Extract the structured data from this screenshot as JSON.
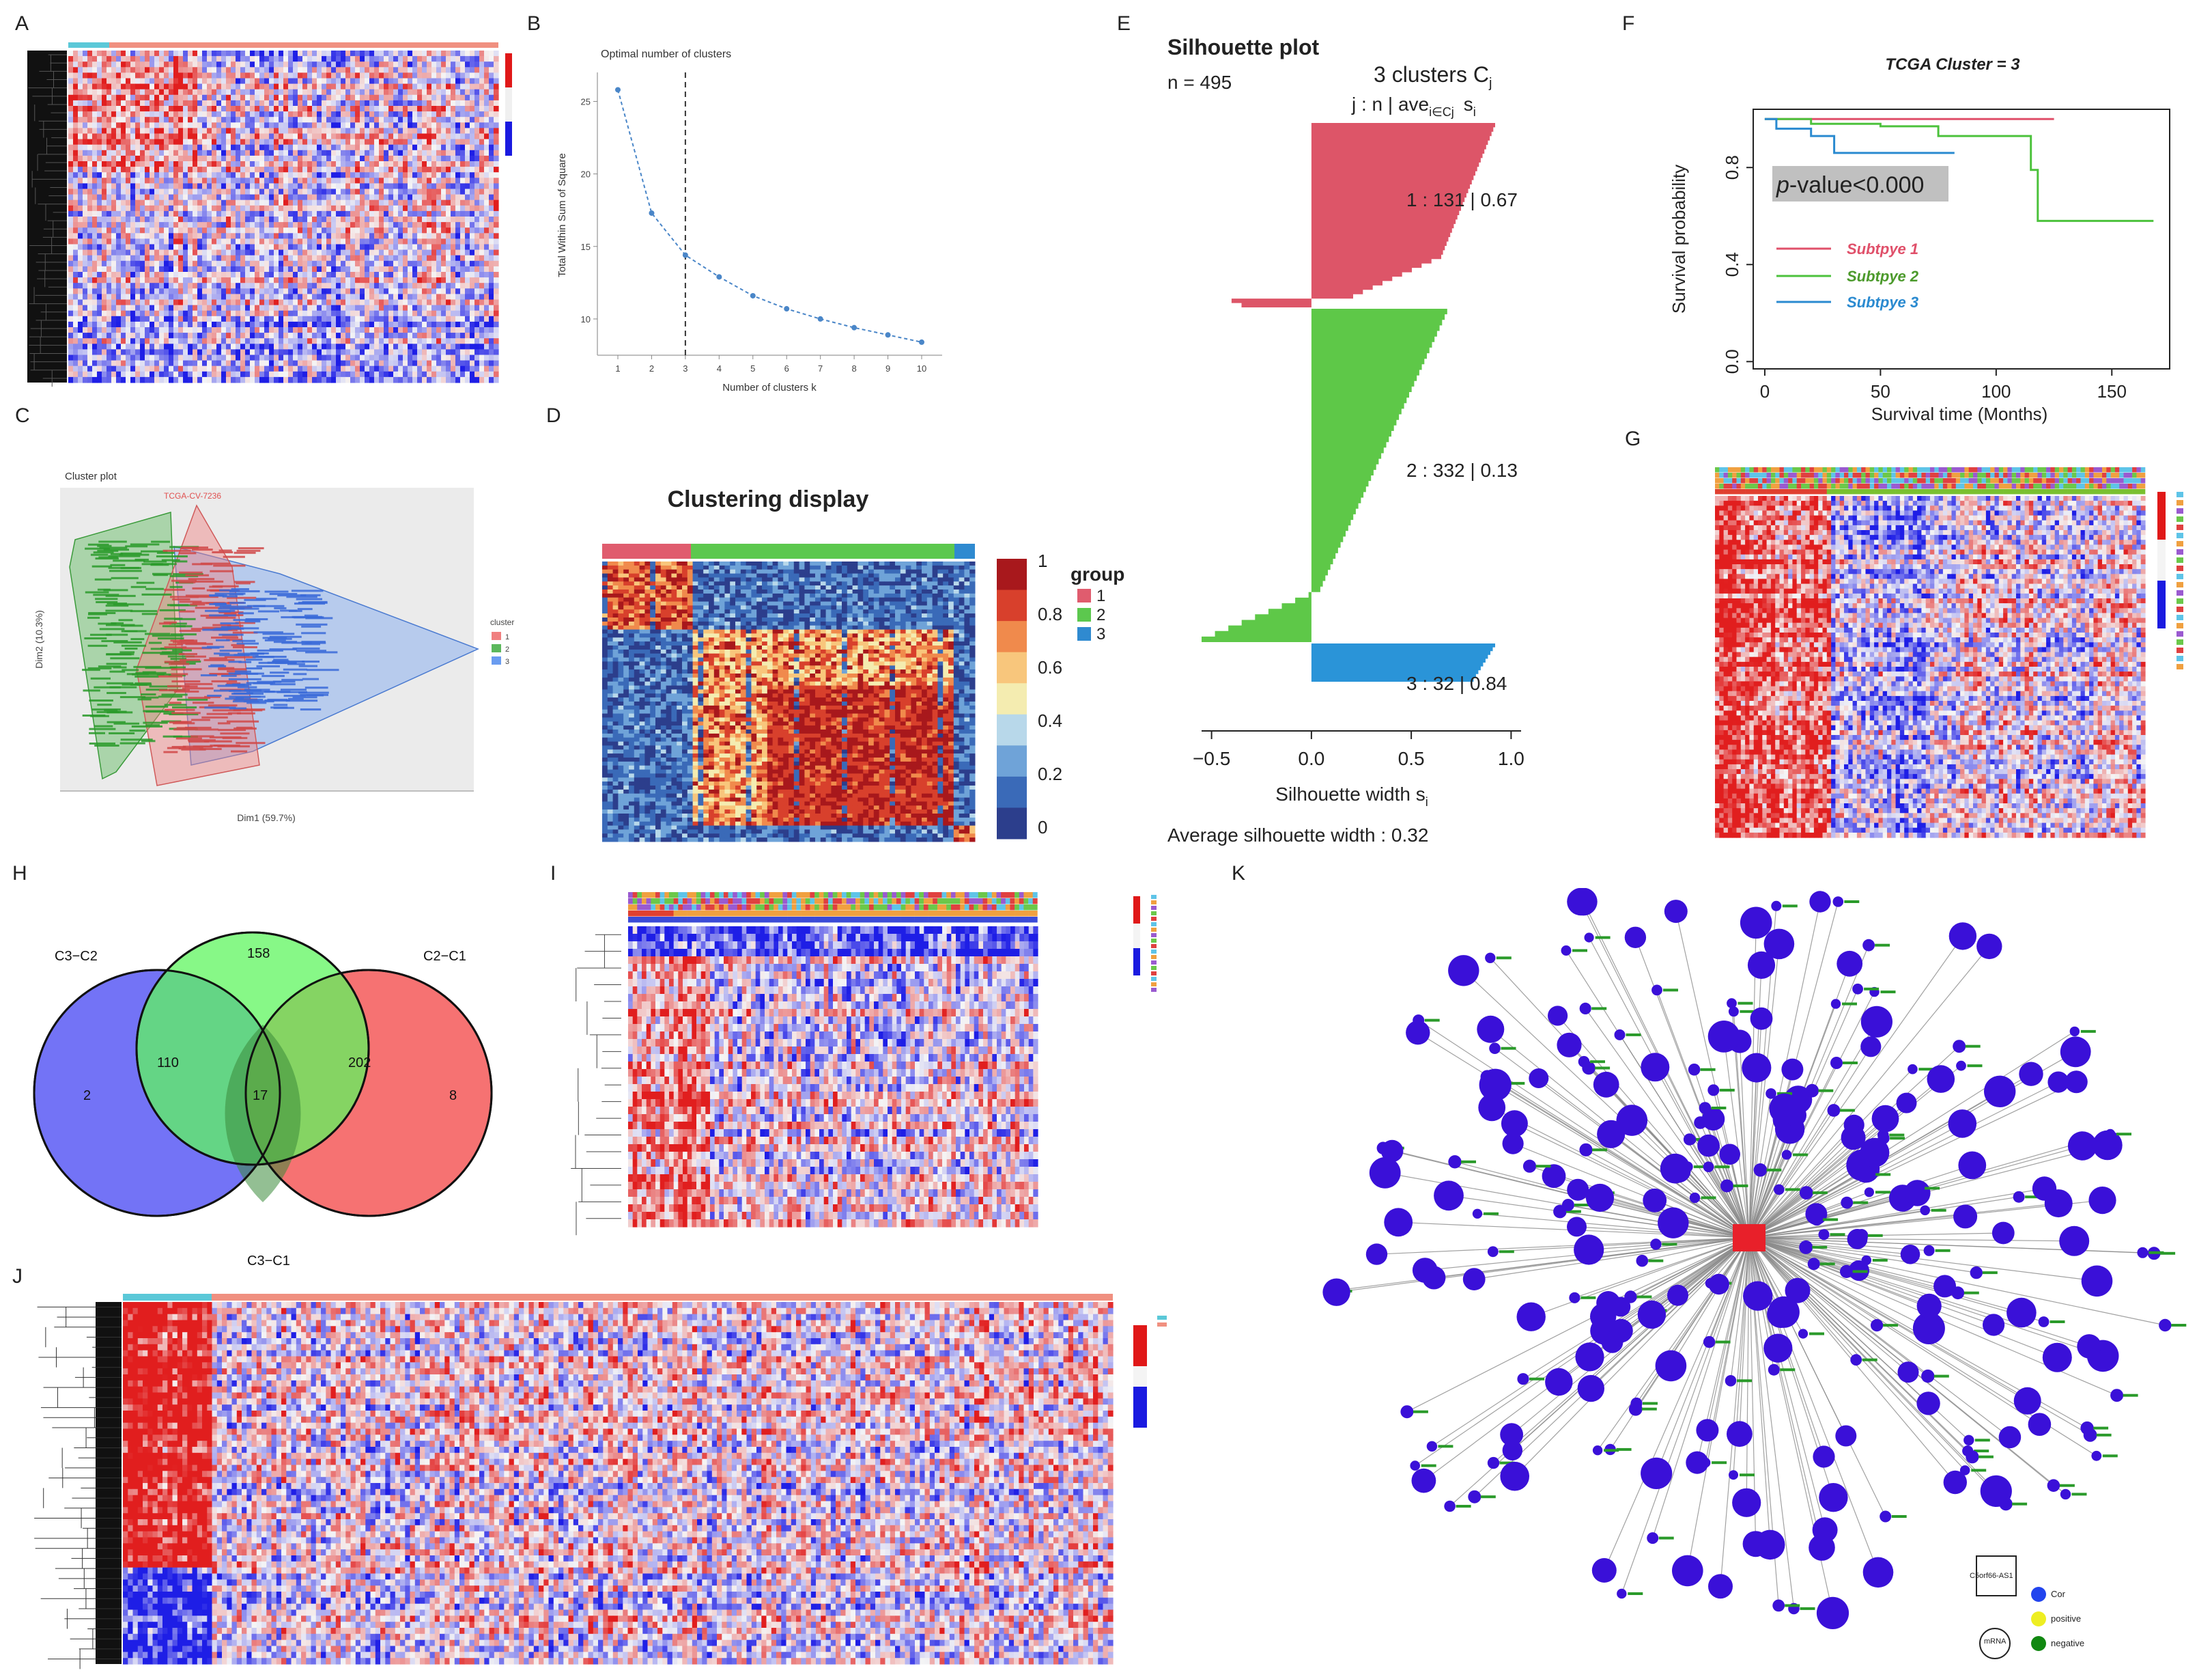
{
  "panel_letters": [
    "A",
    "B",
    "C",
    "D",
    "E",
    "F",
    "G",
    "H",
    "I",
    "J",
    "K"
  ],
  "chart_data": [
    {
      "id": "B",
      "type": "line",
      "title": "Optimal number of clusters",
      "xlabel": "Number of clusters k",
      "ylabel": "Total Within Sum of Square",
      "x": [
        1,
        2,
        3,
        4,
        5,
        6,
        7,
        8,
        9,
        10
      ],
      "values": [
        25.8,
        17.3,
        14.4,
        12.9,
        11.6,
        10.7,
        10.0,
        9.4,
        8.9,
        8.4
      ],
      "ylim": [
        7.5,
        27
      ],
      "yticks": [
        10,
        15,
        20,
        25
      ],
      "xticks": [
        1,
        2,
        3,
        4,
        5,
        6,
        7,
        8,
        9,
        10
      ],
      "vline_x": 3,
      "color": "#4a86c8"
    },
    {
      "id": "C",
      "type": "scatter",
      "title": "Cluster plot",
      "xlabel": "Dim1 (59.7%)",
      "ylabel": "Dim2 (10.3%)",
      "legend_title": "cluster",
      "legend": [
        "1",
        "2",
        "3"
      ],
      "colors": [
        "#f08080",
        "#5cb85c",
        "#6a9cf0"
      ],
      "sample_label": "TCGA-CV-7236"
    },
    {
      "id": "D",
      "type": "heatmap",
      "title": "Clustering display",
      "legend_title": "group",
      "groups": [
        "1",
        "2",
        "3"
      ],
      "group_colors": [
        "#e05c6e",
        "#5cc84e",
        "#2f8ad0"
      ],
      "colorbar_ticks": [
        "1",
        "0.8",
        "0.6",
        "0.4",
        "0.2",
        "0"
      ]
    },
    {
      "id": "E",
      "type": "bar",
      "title": "Silhouette plot",
      "n_label": "n = 495",
      "header": "3 clusters C",
      "header_sub": "j",
      "col_header": "j : n | ave",
      "col_header_sub": "i∈Cj",
      "col_header_tail": "s",
      "col_header_tail_sub": "i",
      "clusters": [
        {
          "label": "1 :   131  |  0.67",
          "n": 131,
          "avg": 0.67,
          "color": "#dd5568"
        },
        {
          "label": "2 :   332  |  0.13",
          "n": 332,
          "avg": 0.13,
          "color": "#5ec848"
        },
        {
          "label": "3 :   32  |  0.84",
          "n": 32,
          "avg": 0.84,
          "color": "#2a94d8"
        }
      ],
      "xlabel": "Silhouette width s",
      "xlabel_sub": "i",
      "xticks": [
        "−0.5",
        "0.0",
        "0.5",
        "1.0"
      ],
      "xtick_values": [
        -0.5,
        0.0,
        0.5,
        1.0
      ],
      "xlim": [
        -0.55,
        1.05
      ],
      "average_label": "Average silhouette width :  0.32",
      "average": 0.32
    },
    {
      "id": "F",
      "type": "line",
      "title": "TCGA Cluster = 3",
      "xlabel": "Survival time (Months)",
      "ylabel": "Survival probability",
      "xticks": [
        0,
        50,
        100,
        150
      ],
      "yticks": [
        "0.0",
        "0.4",
        "0.8"
      ],
      "ytick_values": [
        0.0,
        0.4,
        0.8
      ],
      "xlim": [
        -5,
        175
      ],
      "ylim": [
        -0.03,
        1.04
      ],
      "pvalue": "p-value<0.000",
      "pvalue_italic": "p",
      "pvalue_rest": "-value<0.000",
      "series": [
        {
          "name": "Subtpye 1",
          "color": "#e0506a",
          "steps": [
            [
              0,
              1.0
            ],
            [
              125,
              1.0
            ]
          ]
        },
        {
          "name": "Subtpye 2",
          "color": "#4cc23c",
          "steps": [
            [
              0,
              1.0
            ],
            [
              20,
              0.98
            ],
            [
              50,
              0.97
            ],
            [
              75,
              0.93
            ],
            [
              115,
              0.93
            ],
            [
              115,
              0.79
            ],
            [
              118,
              0.79
            ],
            [
              118,
              0.58
            ],
            [
              168,
              0.58
            ]
          ]
        },
        {
          "name": "Subtpye 3",
          "color": "#2a8ad0",
          "steps": [
            [
              0,
              1.0
            ],
            [
              5,
              0.96
            ],
            [
              20,
              0.96
            ],
            [
              20,
              0.93
            ],
            [
              30,
              0.93
            ],
            [
              30,
              0.86
            ],
            [
              82,
              0.86
            ]
          ]
        }
      ]
    },
    {
      "id": "H",
      "type": "venn",
      "sets": [
        "C3−C2",
        "C2−C1",
        "C3−C1"
      ],
      "set_colors": [
        "#6b6bf5",
        "#66f566",
        "#f56a6a"
      ],
      "regions": [
        {
          "label": "C3−C2 only",
          "value": "2"
        },
        {
          "label": "C2−C1 only",
          "value": "158"
        },
        {
          "label": "C3−C1 only",
          "value": "8"
        },
        {
          "label": "C3−C2 ∩ C2−C1",
          "value": "110"
        },
        {
          "label": "C2−C1 ∩ C3−C1",
          "value": "202"
        },
        {
          "label": "all",
          "value": "17"
        }
      ]
    },
    {
      "id": "K",
      "type": "network",
      "hub_label": "C5orf66-AS1",
      "legend": [
        {
          "label": "Cor",
          "color": "#2244ee"
        },
        {
          "label": "positive",
          "color": "#eeee22"
        },
        {
          "label": "negative",
          "color": "#118811"
        }
      ],
      "legend_shapes": [
        {
          "label": "C5orf66-AS1",
          "shape": "square"
        },
        {
          "label": "mRNA",
          "shape": "circle"
        }
      ],
      "node_color": "#3a10d8",
      "edge_color": "#888888"
    }
  ]
}
